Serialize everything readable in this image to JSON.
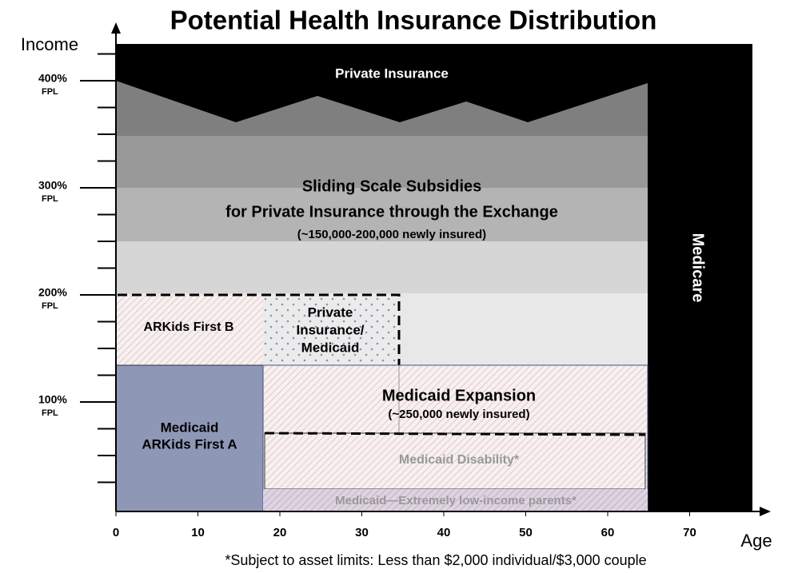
{
  "title": "Potential Health Insurance Distribution",
  "y_axis": {
    "label": "Income",
    "ticks": [
      {
        "value": 400,
        "label": "400%",
        "unit": "FPL"
      },
      {
        "value": 300,
        "label": "300%",
        "unit": "FPL"
      },
      {
        "value": 200,
        "label": "200%",
        "unit": "FPL"
      },
      {
        "value": 100,
        "label": "100%",
        "unit": "FPL"
      }
    ]
  },
  "x_axis": {
    "label": "Age",
    "ticks": [
      0,
      10,
      20,
      30,
      40,
      50,
      60,
      70
    ]
  },
  "regions": {
    "private_insurance": "Private Insurance",
    "subsidies": [
      "Sliding Scale Subsidies",
      "for Private Insurance through the Exchange",
      "(~150,000-200,000 newly insured)"
    ],
    "medicare": "Medicare",
    "arkids_b": "ARKids First B",
    "private_medicaid": [
      "Private",
      "Insurance/",
      "Medicaid"
    ],
    "arkids_a": [
      "Medicaid",
      "ARKids First A"
    ],
    "expansion": [
      "Medicaid Expansion",
      "(~250,000 newly insured)"
    ],
    "disability": "Medicaid Disability*",
    "parents": "Medicaid—Extremely low-income parents*"
  },
  "footnote": "*Subject to asset limits: Less than $2,000 individual/$3,000 couple"
}
